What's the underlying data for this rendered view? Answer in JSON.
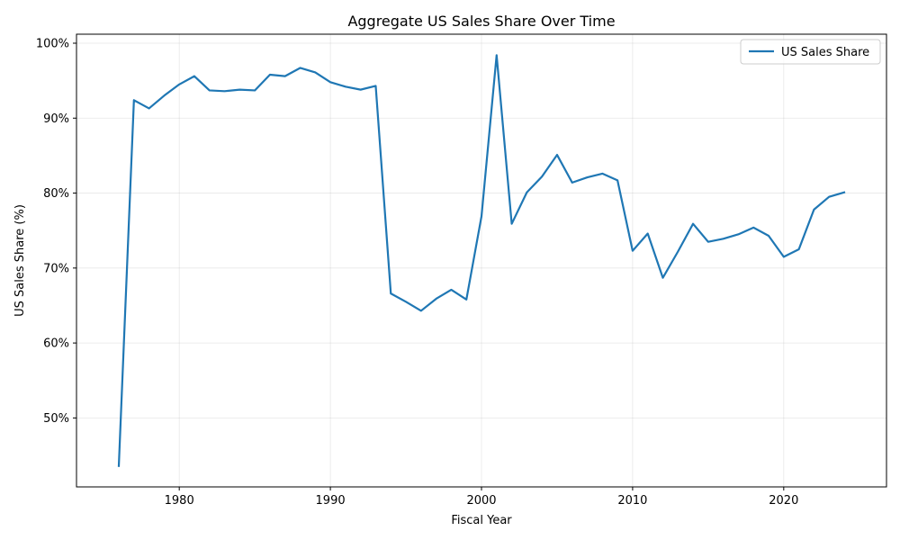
{
  "chart_data": {
    "type": "line",
    "title": "Aggregate US Sales Share Over Time",
    "xlabel": "Fiscal Year",
    "ylabel": "US Sales Share (%)",
    "xlim": [
      1973.2,
      2026.8
    ],
    "ylim": [
      40.8,
      101.2
    ],
    "x_ticks": [
      1980,
      1990,
      2000,
      2010,
      2020
    ],
    "x_tick_labels": [
      "1980",
      "1990",
      "2000",
      "2010",
      "2020"
    ],
    "y_ticks": [
      50,
      60,
      70,
      80,
      90,
      100
    ],
    "y_tick_labels": [
      "50%",
      "60%",
      "70%",
      "80%",
      "90%",
      "100%"
    ],
    "grid": true,
    "legend_position": "top-right",
    "series": [
      {
        "name": "US Sales Share",
        "color": "#1f77b4",
        "x": [
          1976,
          1977,
          1978,
          1979,
          1980,
          1981,
          1982,
          1983,
          1984,
          1985,
          1986,
          1987,
          1988,
          1989,
          1990,
          1991,
          1992,
          1993,
          1994,
          1995,
          1996,
          1997,
          1998,
          1999,
          2000,
          2001,
          2002,
          2003,
          2004,
          2005,
          2006,
          2007,
          2008,
          2009,
          2010,
          2011,
          2012,
          2013,
          2014,
          2015,
          2016,
          2017,
          2018,
          2019,
          2020,
          2021,
          2022,
          2023,
          2024
        ],
        "y": [
          43.6,
          92.4,
          91.3,
          93.0,
          94.5,
          95.6,
          93.7,
          93.6,
          93.8,
          93.7,
          95.8,
          95.6,
          96.7,
          96.1,
          94.8,
          94.2,
          93.8,
          94.3,
          66.6,
          65.5,
          64.3,
          65.9,
          67.1,
          65.8,
          76.9,
          98.4,
          75.9,
          80.1,
          82.2,
          85.1,
          81.4,
          82.1,
          82.6,
          81.7,
          72.3,
          74.6,
          68.7,
          72.2,
          75.9,
          73.5,
          73.9,
          74.5,
          75.4,
          74.3,
          71.5,
          72.5,
          77.8,
          79.5,
          80.1
        ]
      }
    ]
  }
}
